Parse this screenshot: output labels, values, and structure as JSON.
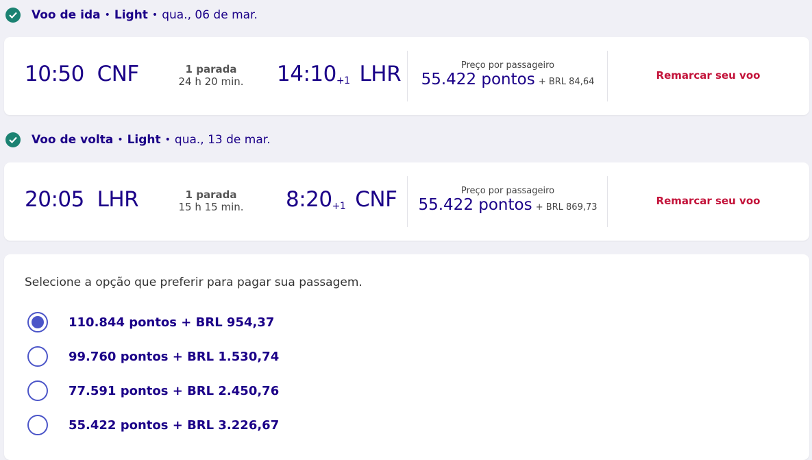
{
  "flights": [
    {
      "title": "Voo de ida",
      "fare": "Light",
      "date": "qua., 06 de mar.",
      "dep_time": "10:50",
      "dep_airport": "CNF",
      "stops": "1 parada",
      "duration": "24 h 20 min.",
      "arr_time": "14:10",
      "arr_offset": "+1",
      "arr_airport": "LHR",
      "price_label": "Preço por passageiro",
      "points": "55.422 pontos",
      "cash": "+ BRL 84,64",
      "action": "Remarcar seu voo"
    },
    {
      "title": "Voo de volta",
      "fare": "Light",
      "date": "qua., 13 de mar.",
      "dep_time": "20:05",
      "dep_airport": "LHR",
      "stops": "1 parada",
      "duration": "15 h 15 min.",
      "arr_time": "8:20",
      "arr_offset": "+1",
      "arr_airport": "CNF",
      "price_label": "Preço por passageiro",
      "points": "55.422 pontos",
      "cash": "+ BRL 869,73",
      "action": "Remarcar seu voo"
    }
  ],
  "payment": {
    "question": "Selecione a opção que preferir para pagar sua passagem.",
    "selected": 0,
    "options": [
      "110.844 pontos + BRL 954,37",
      "99.760 pontos + BRL 1.530,74",
      "77.591 pontos + BRL 2.450,76",
      "55.422 pontos + BRL 3.226,67"
    ]
  },
  "colors": {
    "primary": "#1b0088",
    "accent": "#c3133a",
    "check": "#1b8272",
    "radio": "#4b55c8"
  }
}
